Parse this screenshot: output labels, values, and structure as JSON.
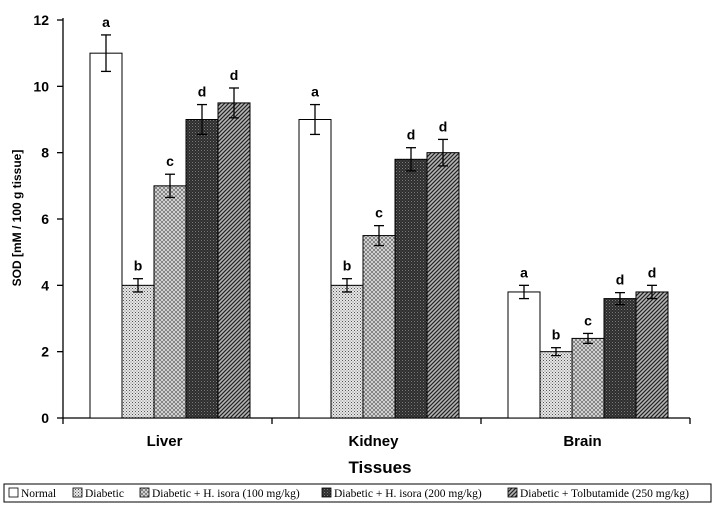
{
  "chart_data": {
    "type": "bar",
    "title": "",
    "xlabel": "Tissues",
    "ylabel": "SOD [mM / 100 g tissue]",
    "ylim": [
      0,
      12
    ],
    "yticks": [
      "0",
      "2",
      "4",
      "6",
      "8",
      "10",
      "12"
    ],
    "categories": [
      "Liver",
      "Kidney",
      "Brain"
    ],
    "grid": false,
    "legend_position": "bottom",
    "series": [
      {
        "name": "Normal",
        "values": [
          11.0,
          9.0,
          3.8
        ],
        "errors": [
          0.55,
          0.45,
          0.2
        ],
        "labels": [
          "a",
          "a",
          "a"
        ],
        "color": "#ffffff",
        "pattern": "none"
      },
      {
        "name": "Diabetic",
        "values": [
          4.0,
          4.0,
          2.0
        ],
        "errors": [
          0.2,
          0.2,
          0.12
        ],
        "labels": [
          "b",
          "b",
          "b"
        ],
        "color": "#d0d0d0",
        "pattern": "dots"
      },
      {
        "name": "Diabetic + H. isora (100 mg/kg)",
        "values": [
          7.0,
          5.5,
          2.4
        ],
        "errors": [
          0.35,
          0.3,
          0.15
        ],
        "labels": [
          "c",
          "c",
          "c"
        ],
        "color": "#c8c8c8",
        "pattern": "crosshatch"
      },
      {
        "name": "Diabetic + H. isora (200 mg/kg)",
        "values": [
          9.0,
          7.8,
          3.6
        ],
        "errors": [
          0.45,
          0.35,
          0.18
        ],
        "labels": [
          "d",
          "d",
          "d"
        ],
        "color": "#3c3c3c",
        "pattern": "dark"
      },
      {
        "name": "Diabetic + Tolbutamide (250 mg/kg)",
        "values": [
          9.5,
          8.0,
          3.8
        ],
        "errors": [
          0.45,
          0.4,
          0.2
        ],
        "labels": [
          "d",
          "d",
          "d"
        ],
        "color": "#8a8a8a",
        "pattern": "diagonal"
      }
    ]
  }
}
